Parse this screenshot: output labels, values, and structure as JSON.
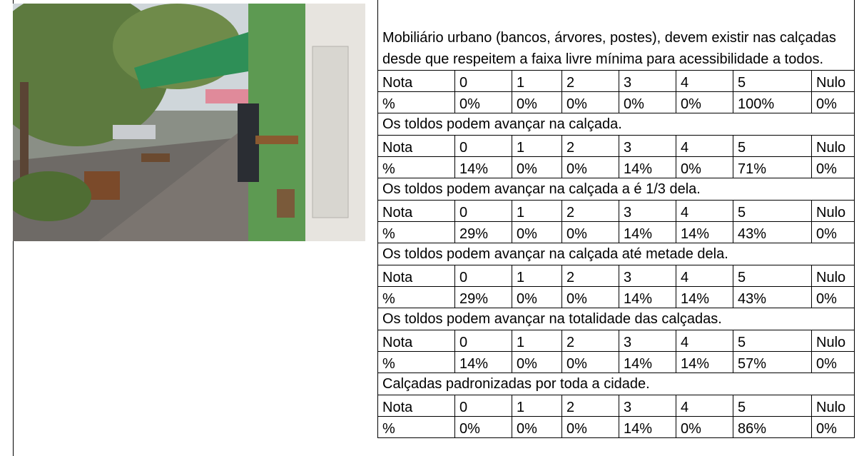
{
  "blocks": [
    {
      "question": "Mobiliário urbano (bancos, árvores, postes), devem existir nas calçadas desde que respeitem a faixa livre mínima para acessibilidade a todos.",
      "grades": [
        "Nota",
        "0",
        "1",
        "2",
        "3",
        "4",
        "5",
        "Nulo"
      ],
      "percents": [
        "%",
        "0%",
        "0%",
        "0%",
        "0%",
        "0%",
        "100%",
        "0%"
      ]
    },
    {
      "question": "Os toldos podem avançar na calçada.",
      "grades": [
        "Nota",
        "0",
        "1",
        "2",
        "3",
        "4",
        "5",
        "Nulo"
      ],
      "percents": [
        "%",
        "14%",
        "0%",
        "0%",
        "14%",
        "0%",
        "71%",
        "0%"
      ]
    },
    {
      "question": "Os toldos podem avançar na calçada a é 1/3 dela.",
      "grades": [
        "Nota",
        "0",
        "1",
        "2",
        "3",
        "4",
        "5",
        "Nulo"
      ],
      "percents": [
        "%",
        "29%",
        "0%",
        "0%",
        "14%",
        "14%",
        "43%",
        "0%"
      ]
    },
    {
      "question": "Os toldos podem avançar na calçada até metade dela.",
      "grades": [
        "Nota",
        "0",
        "1",
        "2",
        "3",
        "4",
        "5",
        "Nulo"
      ],
      "percents": [
        "%",
        "29%",
        "0%",
        "0%",
        "14%",
        "14%",
        "43%",
        "0%"
      ]
    },
    {
      "question": "Os toldos podem avançar na totalidade das calçadas.",
      "grades": [
        "Nota",
        "0",
        "1",
        "2",
        "3",
        "4",
        "5",
        "Nulo"
      ],
      "percents": [
        "%",
        "14%",
        "0%",
        "0%",
        "14%",
        "14%",
        "57%",
        "0%"
      ]
    },
    {
      "question": "Calçadas padronizadas por toda a cidade.",
      "grades": [
        "Nota",
        "0",
        "1",
        "2",
        "3",
        "4",
        "5",
        "Nulo"
      ],
      "percents": [
        "%",
        "0%",
        "0%",
        "0%",
        "14%",
        "0%",
        "86%",
        "0%"
      ]
    }
  ]
}
